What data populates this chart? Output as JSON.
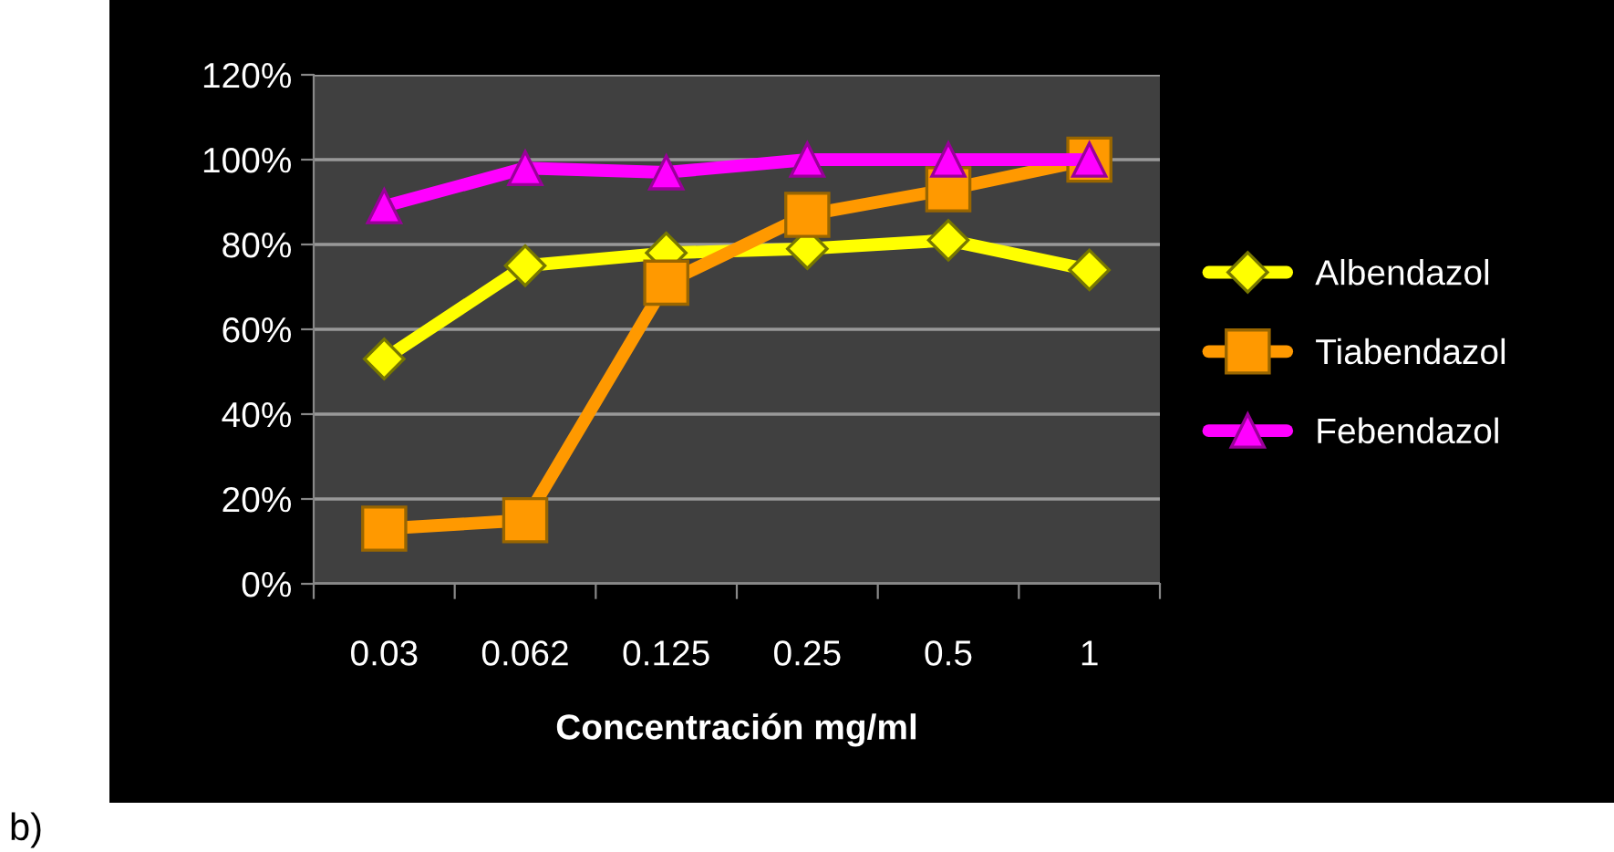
{
  "chart_data": {
    "type": "line",
    "xlabel": "Concentración mg/ml",
    "categories": [
      "0.03",
      "0.062",
      "0.125",
      "0.25",
      "0.5",
      "1"
    ],
    "series": [
      {
        "name": "Albendazol",
        "color": "#ffff00",
        "marker": "diamond",
        "values": [
          53,
          75,
          78,
          79,
          81,
          74
        ]
      },
      {
        "name": "Tiabendazol",
        "color": "#ff9900",
        "marker": "square",
        "values": [
          13,
          15,
          71,
          87,
          93,
          100
        ]
      },
      {
        "name": "Febendazol",
        "color": "#ff00ff",
        "marker": "triangle",
        "values": [
          89,
          98,
          97,
          100,
          100,
          100
        ]
      }
    ],
    "ylim": [
      0,
      120
    ],
    "yticks": [
      {
        "value": 0,
        "label": "0%"
      },
      {
        "value": 20,
        "label": "20%"
      },
      {
        "value": 40,
        "label": "40%"
      },
      {
        "value": 60,
        "label": "60%"
      },
      {
        "value": 80,
        "label": "80%"
      },
      {
        "value": 100,
        "label": "100%"
      },
      {
        "value": 120,
        "label": "120%"
      }
    ],
    "grid": "y",
    "legend": "right",
    "annotations": [
      "b)"
    ]
  }
}
